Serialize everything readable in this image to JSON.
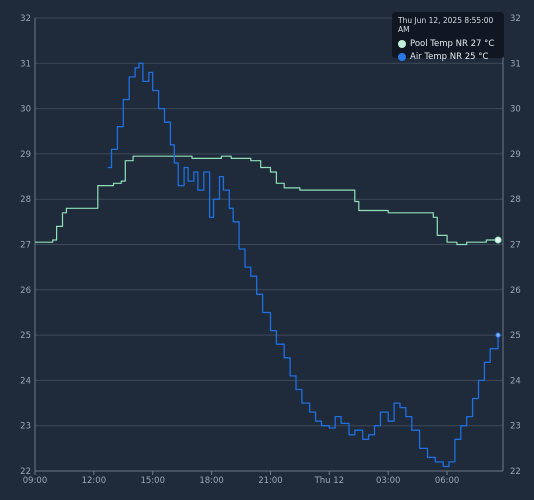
{
  "chart_data": {
    "type": "line",
    "title": "",
    "xlabel": "",
    "ylabel": "",
    "ylim": [
      22,
      32
    ],
    "y_ticks": [
      22,
      23,
      24,
      25,
      26,
      27,
      28,
      29,
      30,
      31,
      32
    ],
    "x_ticks": [
      {
        "label": "09:00",
        "hours": 0
      },
      {
        "label": "12:00",
        "hours": 3
      },
      {
        "label": "15:00",
        "hours": 6
      },
      {
        "label": "18:00",
        "hours": 9
      },
      {
        "label": "21:00",
        "hours": 12
      },
      {
        "label": "Thu 12",
        "hours": 15
      },
      {
        "label": "03:00",
        "hours": 18
      },
      {
        "label": "06:00",
        "hours": 21
      }
    ],
    "grid": true,
    "series": [
      {
        "name": "Pool Temp NR",
        "color": "#8fe0b8",
        "points": [
          [
            0,
            27.05
          ],
          [
            0.5,
            27.05
          ],
          [
            0.9,
            27.1
          ],
          [
            1.1,
            27.4
          ],
          [
            1.4,
            27.7
          ],
          [
            1.6,
            27.8
          ],
          [
            2.0,
            27.8
          ],
          [
            2.5,
            27.8
          ],
          [
            3.0,
            27.8
          ],
          [
            3.2,
            28.3
          ],
          [
            3.5,
            28.3
          ],
          [
            4.0,
            28.35
          ],
          [
            4.4,
            28.4
          ],
          [
            4.6,
            28.85
          ],
          [
            5.0,
            28.95
          ],
          [
            6.0,
            28.95
          ],
          [
            7.0,
            28.95
          ],
          [
            8.0,
            28.9
          ],
          [
            9.0,
            28.9
          ],
          [
            9.5,
            28.95
          ],
          [
            10.0,
            28.9
          ],
          [
            11.0,
            28.85
          ],
          [
            11.5,
            28.7
          ],
          [
            12.0,
            28.6
          ],
          [
            12.3,
            28.35
          ],
          [
            12.7,
            28.25
          ],
          [
            13.5,
            28.2
          ],
          [
            14.5,
            28.2
          ],
          [
            15.0,
            28.2
          ],
          [
            16.0,
            28.2
          ],
          [
            16.3,
            27.95
          ],
          [
            16.5,
            27.75
          ],
          [
            17.0,
            27.75
          ],
          [
            18.0,
            27.7
          ],
          [
            19.0,
            27.7
          ],
          [
            20.0,
            27.7
          ],
          [
            20.3,
            27.6
          ],
          [
            20.5,
            27.2
          ],
          [
            21.0,
            27.05
          ],
          [
            21.5,
            27.0
          ],
          [
            22.0,
            27.05
          ],
          [
            23.0,
            27.1
          ],
          [
            23.6,
            27.1
          ]
        ],
        "current_label": "Pool Temp NR",
        "current_value": "27 °C"
      },
      {
        "name": "Air Temp NR",
        "color": "#1f6fe0",
        "points": [
          [
            3.7,
            28.7
          ],
          [
            3.9,
            29.1
          ],
          [
            4.2,
            29.6
          ],
          [
            4.5,
            30.2
          ],
          [
            4.8,
            30.7
          ],
          [
            5.1,
            30.9
          ],
          [
            5.3,
            31.0
          ],
          [
            5.5,
            30.6
          ],
          [
            5.8,
            30.8
          ],
          [
            6.0,
            30.4
          ],
          [
            6.3,
            30.0
          ],
          [
            6.6,
            29.7
          ],
          [
            6.9,
            29.2
          ],
          [
            7.1,
            28.8
          ],
          [
            7.3,
            28.3
          ],
          [
            7.6,
            28.7
          ],
          [
            7.8,
            28.4
          ],
          [
            8.1,
            28.6
          ],
          [
            8.3,
            28.2
          ],
          [
            8.6,
            28.6
          ],
          [
            8.9,
            27.6
          ],
          [
            9.1,
            28.0
          ],
          [
            9.4,
            28.5
          ],
          [
            9.6,
            28.2
          ],
          [
            9.9,
            27.8
          ],
          [
            10.1,
            27.5
          ],
          [
            10.4,
            26.9
          ],
          [
            10.7,
            26.5
          ],
          [
            11.0,
            26.3
          ],
          [
            11.3,
            25.9
          ],
          [
            11.6,
            25.5
          ],
          [
            12.0,
            25.1
          ],
          [
            12.3,
            24.8
          ],
          [
            12.7,
            24.5
          ],
          [
            13.0,
            24.1
          ],
          [
            13.3,
            23.8
          ],
          [
            13.6,
            23.5
          ],
          [
            14.0,
            23.3
          ],
          [
            14.3,
            23.1
          ],
          [
            14.6,
            23.0
          ],
          [
            15.0,
            22.95
          ],
          [
            15.3,
            23.2
          ],
          [
            15.6,
            23.05
          ],
          [
            16.0,
            22.8
          ],
          [
            16.3,
            22.9
          ],
          [
            16.7,
            22.7
          ],
          [
            17.0,
            22.8
          ],
          [
            17.3,
            23.0
          ],
          [
            17.6,
            23.3
          ],
          [
            18.0,
            23.1
          ],
          [
            18.3,
            23.5
          ],
          [
            18.6,
            23.4
          ],
          [
            18.9,
            23.2
          ],
          [
            19.2,
            22.9
          ],
          [
            19.6,
            22.5
          ],
          [
            20.0,
            22.3
          ],
          [
            20.4,
            22.2
          ],
          [
            20.8,
            22.1
          ],
          [
            21.1,
            22.2
          ],
          [
            21.4,
            22.7
          ],
          [
            21.7,
            23.0
          ],
          [
            22.0,
            23.2
          ],
          [
            22.3,
            23.6
          ],
          [
            22.6,
            24.0
          ],
          [
            22.9,
            24.4
          ],
          [
            23.2,
            24.7
          ],
          [
            23.6,
            25.0
          ]
        ],
        "current_label": "Air Temp NR",
        "current_value": "25 °C"
      }
    ],
    "tooltip": {
      "title": "Thu Jun 12, 2025 8:55:00 AM",
      "placement": "top-right"
    }
  }
}
